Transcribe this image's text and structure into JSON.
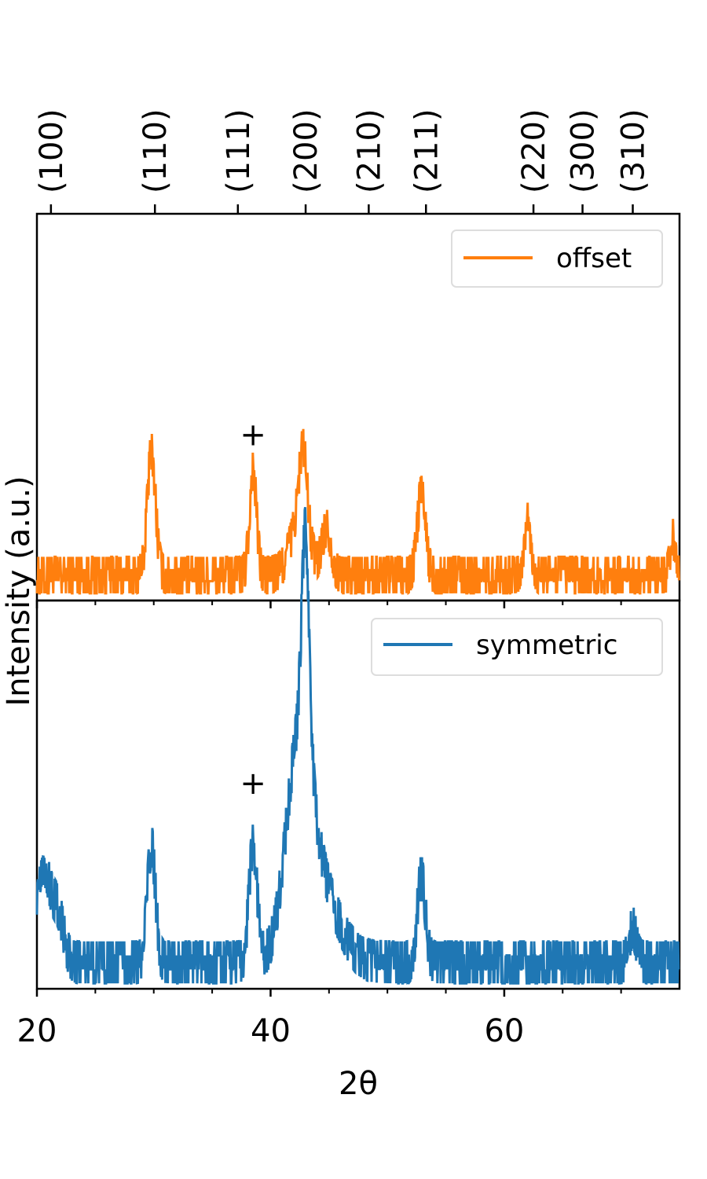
{
  "chart_data": {
    "type": "line",
    "xlabel": "2θ",
    "ylabel": "Intensity (a.u.)",
    "xlim": [
      20,
      75
    ],
    "x_ticks": [
      20,
      40,
      60
    ],
    "x_tick_labels": [
      "20",
      "40",
      "60"
    ],
    "x_minor_ticks": [
      25,
      30,
      35,
      45,
      50,
      55,
      65,
      70
    ],
    "reflections": [
      {
        "label": "(100)",
        "x": 21.2
      },
      {
        "label": "(110)",
        "x": 30.1
      },
      {
        "label": "(111)",
        "x": 37.2
      },
      {
        "label": "(200)",
        "x": 43.0
      },
      {
        "label": "(210)",
        "x": 48.4
      },
      {
        "label": "(211)",
        "x": 53.3
      },
      {
        "label": "(220)",
        "x": 62.5
      },
      {
        "label": "(300)",
        "x": 66.7
      },
      {
        "label": "(310)",
        "x": 71.0
      }
    ],
    "panels": [
      {
        "series_name": "offset",
        "color": "#ff7f0e",
        "marker": {
          "text": "+",
          "x": 38.5,
          "y": 0.43
        },
        "peaks": [
          {
            "x": 29.8,
            "height": 0.32,
            "width": 0.35
          },
          {
            "x": 38.5,
            "height": 0.27,
            "width": 0.3
          },
          {
            "x": 42.5,
            "height": 0.14,
            "width": 0.8
          },
          {
            "x": 42.8,
            "height": 0.2,
            "width": 0.35
          },
          {
            "x": 44.8,
            "height": 0.12,
            "width": 0.4
          },
          {
            "x": 52.9,
            "height": 0.21,
            "width": 0.35
          },
          {
            "x": 62.0,
            "height": 0.14,
            "width": 0.3
          },
          {
            "x": 74.4,
            "height": 0.1,
            "width": 0.2
          }
        ],
        "baseline": 0.05,
        "noise": 0.07,
        "ymax": 1.0
      },
      {
        "series_name": "symmetric",
        "color": "#1f77b4",
        "marker": {
          "text": "+",
          "x": 38.5,
          "y": 0.53
        },
        "peaks": [
          {
            "x": 20.5,
            "height": 0.25,
            "width": 0.6
          },
          {
            "x": 21.8,
            "height": 0.12,
            "width": 0.5
          },
          {
            "x": 29.8,
            "height": 0.3,
            "width": 0.35
          },
          {
            "x": 38.5,
            "height": 0.3,
            "width": 0.35
          },
          {
            "x": 42.4,
            "height": 0.5,
            "width": 1.1
          },
          {
            "x": 43.0,
            "height": 0.55,
            "width": 0.32
          },
          {
            "x": 44.2,
            "height": 0.18,
            "width": 1.6
          },
          {
            "x": 52.9,
            "height": 0.22,
            "width": 0.35
          },
          {
            "x": 71.0,
            "height": 0.09,
            "width": 0.3
          }
        ],
        "baseline": 0.05,
        "noise": 0.08,
        "ymax": 1.0
      }
    ]
  }
}
